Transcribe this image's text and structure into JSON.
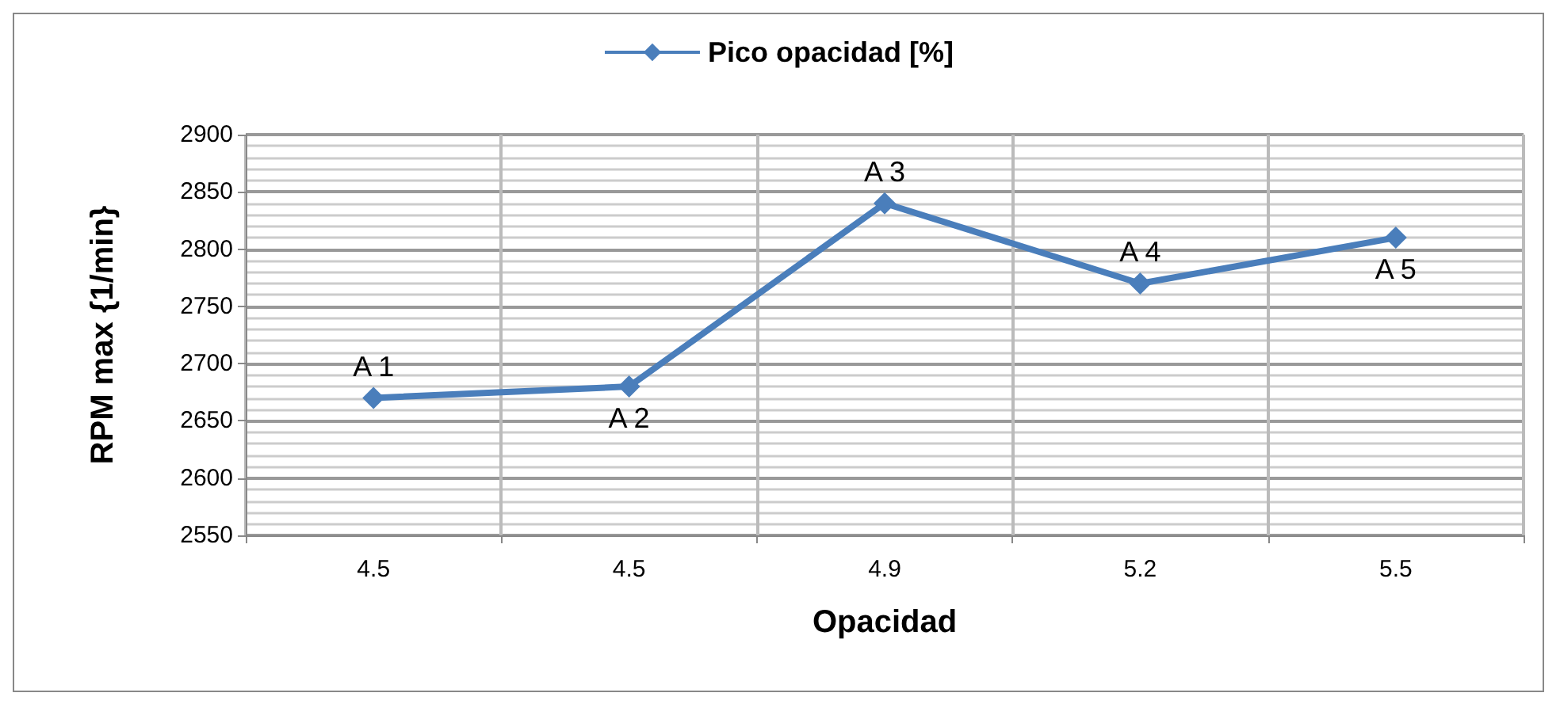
{
  "chart_data": {
    "type": "line",
    "xlabel": "Opacidad",
    "ylabel": "RPM max {1/min}",
    "categories": [
      "4.5",
      "4.5",
      "4.9",
      "5.2",
      "5.5"
    ],
    "series": [
      {
        "name": "Pico opacidad [%]",
        "color": "#4a7ebb",
        "values": [
          2670,
          2680,
          2840,
          2770,
          2810
        ],
        "value_labels": [
          "A 1",
          "A 2",
          "A 3",
          "A 4",
          "A 5"
        ]
      }
    ],
    "ylim": [
      2550,
      2900
    ],
    "yticks": [
      2550,
      2600,
      2650,
      2700,
      2750,
      2800,
      2850,
      2900
    ],
    "grid": true,
    "legend": "top",
    "marker": "diamond",
    "line_style": "solid"
  }
}
